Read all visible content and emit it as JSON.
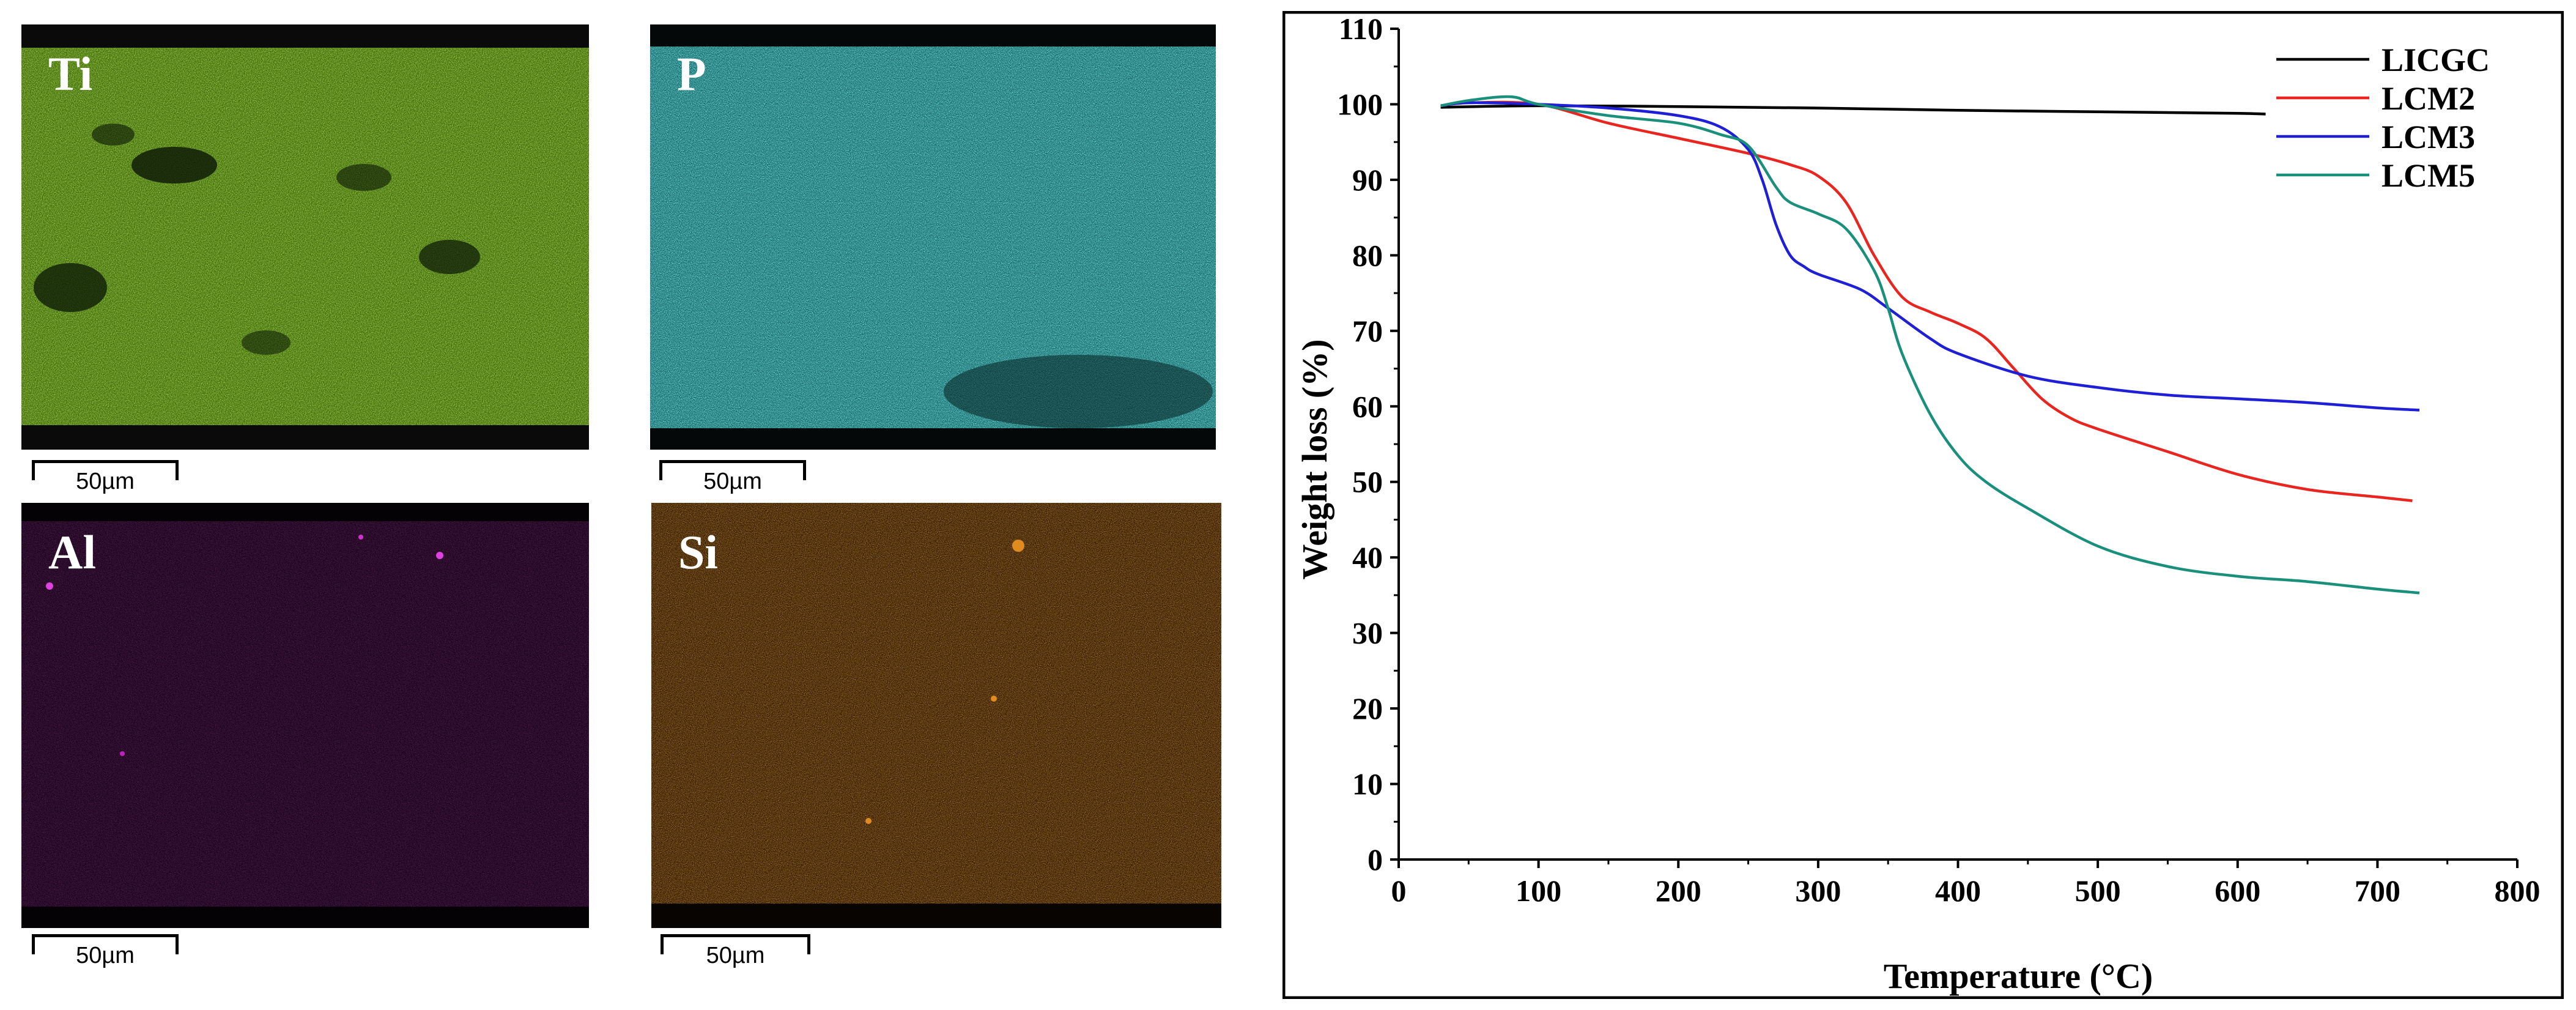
{
  "maps": [
    {
      "element": "Ti",
      "color": "#7ac41a",
      "scale": "50µm"
    },
    {
      "element": "P",
      "color": "#2fd6d4",
      "scale": "50µm"
    },
    {
      "element": "Al",
      "color": "#4a0a48",
      "scale": "50µm"
    },
    {
      "element": "Si",
      "color": "#8a4a0c",
      "scale": "50µm"
    }
  ],
  "chart_data": {
    "type": "line",
    "title": "",
    "xlabel": "Temperature (°C)",
    "ylabel": "Weight loss (%)",
    "xlim": [
      0,
      800
    ],
    "ylim": [
      0,
      110
    ],
    "xticks": [
      "0",
      "100",
      "200",
      "300",
      "400",
      "500",
      "600",
      "700",
      "800"
    ],
    "yticks": [
      "0",
      "10",
      "20",
      "30",
      "40",
      "50",
      "60",
      "70",
      "80",
      "90",
      "100",
      "110"
    ],
    "legend_position": "top-right",
    "series": [
      {
        "name": "LICGC",
        "color": "#000000",
        "x": [
          30,
          100,
          200,
          300,
          400,
          500,
          600,
          620
        ],
        "y": [
          99.6,
          99.8,
          99.7,
          99.5,
          99.2,
          99.0,
          98.8,
          98.7
        ]
      },
      {
        "name": "LCM2",
        "color": "#e8251f",
        "x": [
          30,
          50,
          100,
          150,
          200,
          250,
          280,
          300,
          320,
          340,
          360,
          380,
          400,
          420,
          440,
          460,
          480,
          500,
          550,
          600,
          650,
          700,
          725
        ],
        "y": [
          99.8,
          100.2,
          100.0,
          97.5,
          95.5,
          93.5,
          92.0,
          90.5,
          87.0,
          80.0,
          74.5,
          72.5,
          71.0,
          69.0,
          65.0,
          61.0,
          58.5,
          57.0,
          54.0,
          51.0,
          49.0,
          48.0,
          47.5
        ]
      },
      {
        "name": "LCM3",
        "color": "#1f1fd6",
        "x": [
          30,
          50,
          100,
          150,
          200,
          230,
          250,
          260,
          270,
          280,
          290,
          300,
          330,
          350,
          380,
          400,
          450,
          500,
          550,
          600,
          650,
          700,
          730
        ],
        "y": [
          99.8,
          100.2,
          100.0,
          99.5,
          98.5,
          97.0,
          94.0,
          90.0,
          84.0,
          80.0,
          78.5,
          77.5,
          75.5,
          73.0,
          69.0,
          67.0,
          64.0,
          62.5,
          61.5,
          61.0,
          60.5,
          59.8,
          59.5
        ]
      },
      {
        "name": "LCM5",
        "color": "#1a8f7c",
        "x": [
          30,
          50,
          80,
          100,
          150,
          200,
          230,
          250,
          270,
          280,
          300,
          320,
          340,
          350,
          360,
          380,
          400,
          420,
          450,
          500,
          550,
          600,
          650,
          700,
          730
        ],
        "y": [
          99.8,
          100.5,
          101.0,
          100.0,
          98.5,
          97.5,
          96.0,
          94.5,
          89.0,
          87.0,
          85.5,
          83.5,
          78.0,
          73.0,
          67.0,
          59.0,
          53.5,
          50.0,
          46.5,
          41.5,
          38.8,
          37.5,
          36.8,
          35.8,
          35.3
        ]
      }
    ]
  }
}
